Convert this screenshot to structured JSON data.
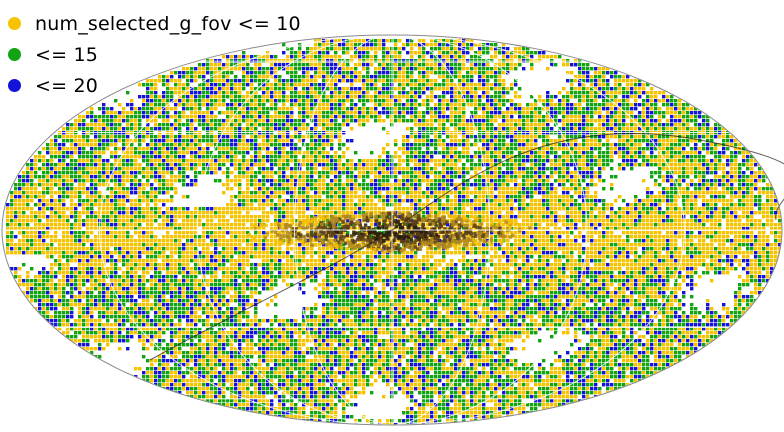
{
  "chart_data": {
    "type": "scatter",
    "projection": "aitoff",
    "title": "",
    "xlabel": "",
    "ylabel": "",
    "grid": true,
    "legend_position": "top-left",
    "background_color": "#ffffff",
    "grid_color": "#ffffff",
    "outline_color": "#8a8a8a",
    "galactic_plane_colors": [
      "#f5c000",
      "#b08a20",
      "#5a4018",
      "#2a1c0c"
    ],
    "series": [
      {
        "name": "num_selected_g_fov <= 10",
        "color": "#f7c300",
        "relative_density": 0.42
      },
      {
        "name": "<= 15",
        "color": "#11a311",
        "relative_density": 0.38
      },
      {
        "name": "<= 20",
        "color": "#1414d8",
        "relative_density": 0.2
      }
    ]
  }
}
